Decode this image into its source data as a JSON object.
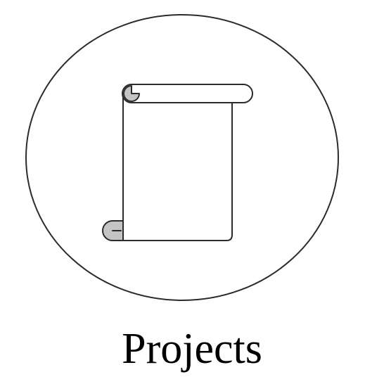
{
  "app_icon": {
    "name": "Projects",
    "icon": "scroll-icon",
    "colors": {
      "stroke": "#2b2b2b",
      "curl_fill": "#c4c4c4",
      "background": "#ffffff",
      "label": "#000000"
    }
  }
}
